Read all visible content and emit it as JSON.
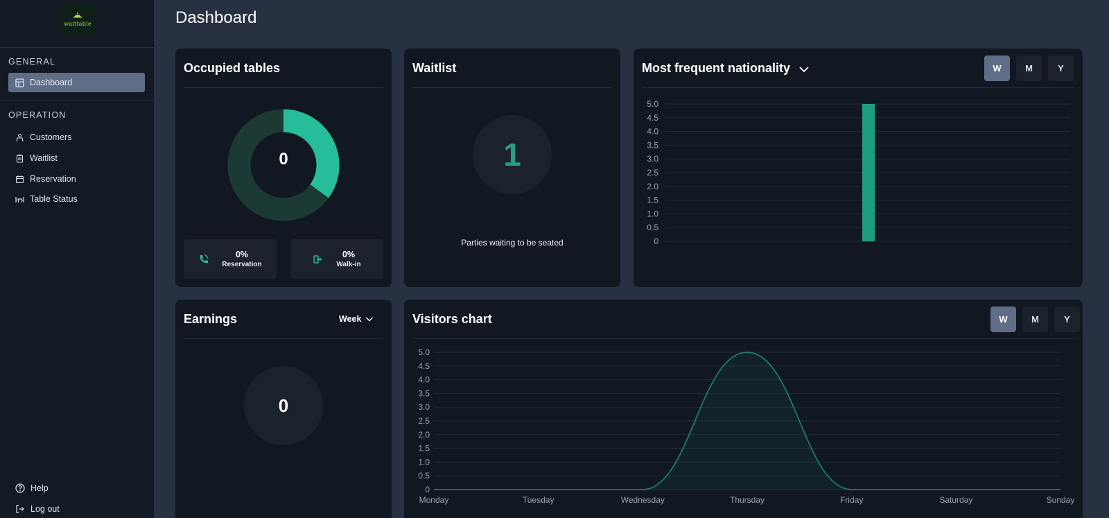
{
  "app": {
    "logo_text": "waittable"
  },
  "sidebar": {
    "general_heading": "GENERAL",
    "operation_heading": "OPERATION",
    "items": [
      {
        "label": "Dashboard",
        "icon": "dashboard-icon"
      },
      {
        "label": "Customers",
        "icon": "customers-icon"
      },
      {
        "label": "Waitlist",
        "icon": "clipboard-icon"
      },
      {
        "label": "Reservation",
        "icon": "calendar-icon"
      },
      {
        "label": "Table Status",
        "icon": "table-icon"
      }
    ],
    "help_label": "Help",
    "logout_label": "Log out"
  },
  "page": {
    "title": "Dashboard"
  },
  "occupied": {
    "title": "Occupied tables",
    "count": "0",
    "donut_fraction": 0.35,
    "reservation_pct": "0%",
    "reservation_label": "Reservation",
    "walkin_pct": "0%",
    "walkin_label": "Walk-in"
  },
  "waitlist": {
    "title": "Waitlist",
    "count": "1",
    "caption": "Parties waiting to be seated"
  },
  "nationality": {
    "title": "Most frequent nationality",
    "toggles": [
      "W",
      "M",
      "Y"
    ]
  },
  "earnings": {
    "title": "Earnings",
    "period": "Week",
    "value": "0"
  },
  "visitors": {
    "title": "Visitors chart",
    "toggles": [
      "W",
      "M",
      "Y"
    ]
  },
  "colors": {
    "accent": "#26be9a",
    "accent_dark": "#1b3a33",
    "card_bg": "#121822",
    "page_bg": "#283141",
    "sidebar_bg": "#131a24",
    "active_toggle": "#5f6d86"
  },
  "chart_data": [
    {
      "type": "bar",
      "categories": [
        ""
      ],
      "values": [
        5
      ],
      "ylim": [
        0,
        5
      ],
      "yticks": [
        "0",
        "0.5",
        "1.0",
        "1.5",
        "2.0",
        "2.5",
        "3.0",
        "3.5",
        "4.0",
        "4.5",
        "5.0"
      ],
      "grid": true,
      "color": "#1f9e7d"
    },
    {
      "type": "area",
      "categories": [
        "Monday",
        "Tuesday",
        "Wednesday",
        "Thursday",
        "Friday",
        "Saturday",
        "Sunday"
      ],
      "values": [
        0,
        0,
        0,
        5,
        0,
        0,
        0
      ],
      "ylim": [
        0,
        5
      ],
      "yticks": [
        "0",
        "0.5",
        "1.0",
        "1.5",
        "2.0",
        "2.5",
        "3.0",
        "3.5",
        "4.0",
        "4.5",
        "5.0"
      ],
      "grid": true,
      "color": "#1f9e7d"
    }
  ]
}
